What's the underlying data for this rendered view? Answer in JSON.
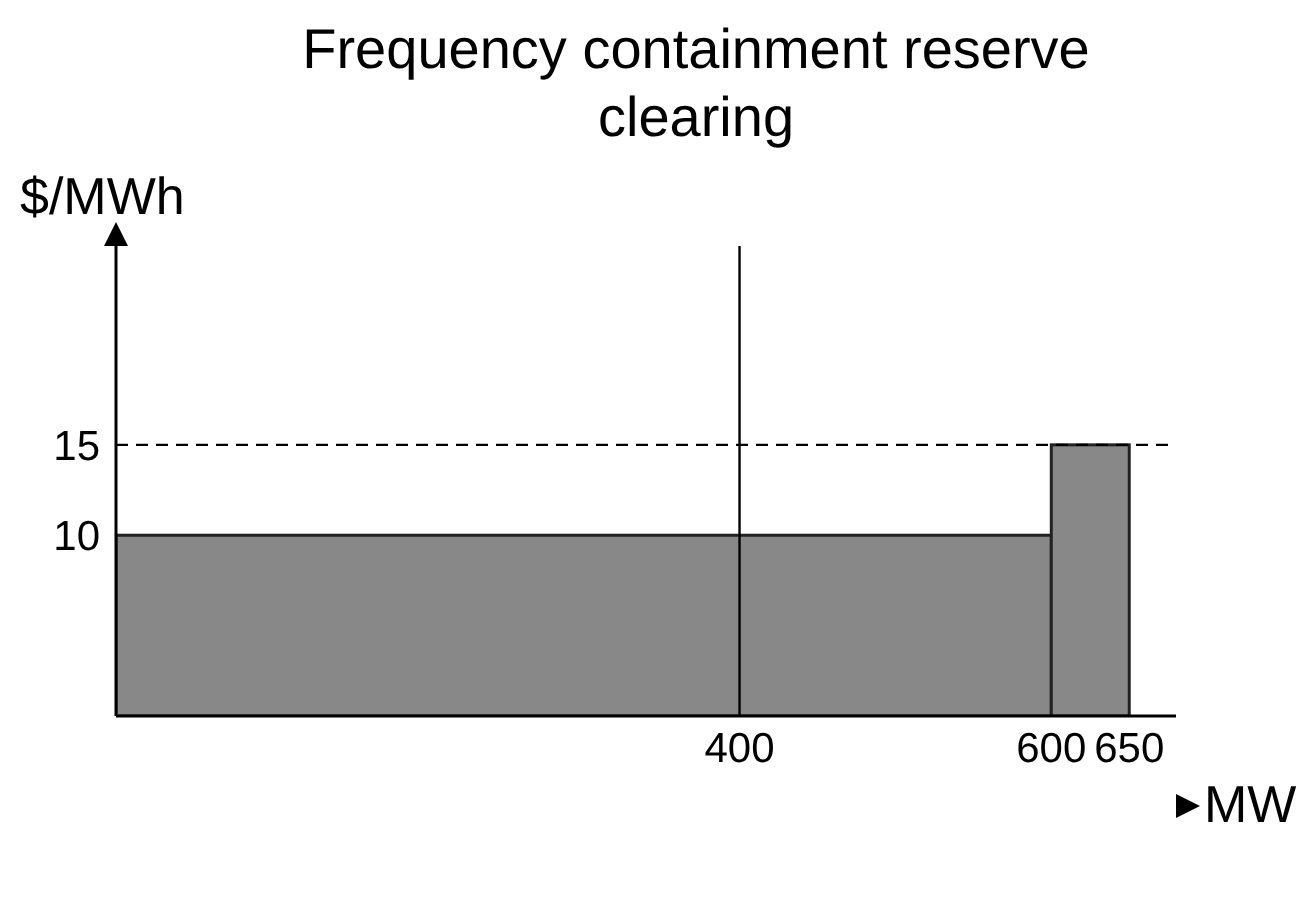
{
  "chart_data": {
    "type": "histogram",
    "title": "Frequency containment reserve clearing",
    "xlabel": "MW",
    "ylabel": "$/MWh",
    "bins": [
      0,
      600,
      650
    ],
    "values": [
      10,
      15
    ],
    "color": "#888888",
    "xlim": [
      0,
      680
    ],
    "xticks": [
      400,
      600,
      650
    ],
    "ylim": [
      0,
      26
    ],
    "yticks": [
      10,
      15
    ],
    "ref_lines": [
      {
        "axis": "x",
        "value": 400,
        "color": "#000000"
      },
      {
        "axis": "y",
        "value": 15,
        "color": "#000000",
        "line_style": "dashed"
      }
    ]
  }
}
